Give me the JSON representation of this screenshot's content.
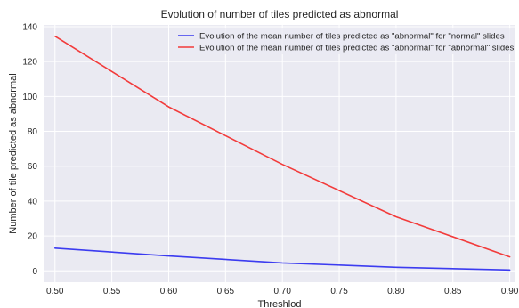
{
  "chart_data": {
    "type": "line",
    "title": "Evolution of number of tiles predicted as abnormal",
    "xlabel": "Threshlod",
    "ylabel": "Number of tile predicted as abnormal",
    "x": [
      0.5,
      0.6,
      0.7,
      0.8,
      0.9
    ],
    "xlim": [
      0.49,
      0.905
    ],
    "ylim": [
      -6.5,
      141
    ],
    "xticks": [
      "0.50",
      "0.55",
      "0.60",
      "0.65",
      "0.70",
      "0.75",
      "0.80",
      "0.85",
      "0.90"
    ],
    "yticks": [
      "0",
      "20",
      "40",
      "60",
      "80",
      "100",
      "120",
      "140"
    ],
    "grid": true,
    "legend_position": "top-right",
    "series": [
      {
        "name": "Evolution of the mean number of tiles predicted as \"abnormal\" for \"normal\" slides",
        "values": [
          13,
          8.5,
          4.5,
          2,
          0.5
        ],
        "color": "#3b3bf0"
      },
      {
        "name": "Evolution of the mean number of tiles predicted as \"abnormal\" for \"abnormal\" slides",
        "values": [
          134.5,
          94,
          61,
          31,
          8
        ],
        "color": "#f23b3b"
      }
    ],
    "colors": {
      "plot_background": "#eaeaf2",
      "grid": "#ffffff",
      "legend_background": "#eaeaf2"
    }
  }
}
